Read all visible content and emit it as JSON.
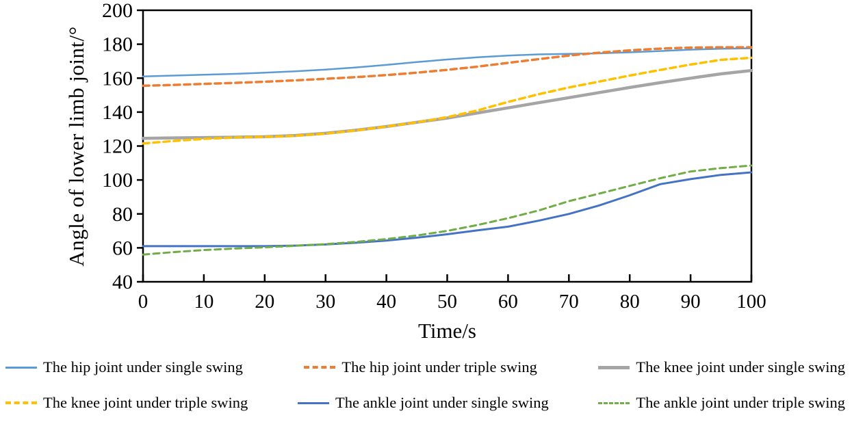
{
  "figure": {
    "background": "#ffffff",
    "text_color": "#000000",
    "axis_color": "#000000"
  },
  "chart_data": {
    "type": "line",
    "title": "",
    "xlabel": "Time/s",
    "ylabel": "Angle of lower limb joint/°",
    "xlim": [
      0,
      100
    ],
    "ylim": [
      40,
      200
    ],
    "xticks": [
      0,
      10,
      20,
      30,
      40,
      50,
      60,
      70,
      80,
      90,
      100
    ],
    "yticks": [
      40,
      60,
      80,
      100,
      120,
      140,
      160,
      180,
      200
    ],
    "grid": false,
    "legend_position": "bottom",
    "x": [
      0,
      5,
      10,
      15,
      20,
      25,
      30,
      35,
      40,
      45,
      50,
      55,
      60,
      65,
      70,
      75,
      80,
      85,
      90,
      95,
      100
    ],
    "series": [
      {
        "name": "The hip joint under single swing",
        "color": "#5b9bd5",
        "style": "solid",
        "width": 2.5,
        "values": [
          161,
          161.5,
          162,
          162.5,
          163.2,
          164,
          165,
          166.3,
          167.8,
          169.5,
          171,
          172.3,
          173.3,
          174,
          174.3,
          174.6,
          175.2,
          176,
          176.8,
          177.3,
          177.6
        ]
      },
      {
        "name": "The hip joint under triple swing",
        "color": "#ed7d31",
        "style": "dashed",
        "width": 3.5,
        "values": [
          155.5,
          156,
          156.6,
          157.2,
          157.9,
          158.7,
          159.6,
          160.6,
          161.8,
          163.2,
          164.9,
          166.8,
          169,
          171.2,
          173.3,
          175,
          176.4,
          177.4,
          178,
          178.2,
          178.2
        ]
      },
      {
        "name": "The knee joint under single swing",
        "color": "#a5a5a5",
        "style": "solid",
        "width": 4.5,
        "values": [
          124.5,
          124.8,
          125,
          125.2,
          125.5,
          126.2,
          127.5,
          129.3,
          131.5,
          134,
          136.5,
          139.5,
          142.5,
          145.5,
          148.5,
          151.5,
          154.5,
          157.3,
          160,
          162.5,
          164.5
        ]
      },
      {
        "name": "The knee joint under triple swing",
        "color": "#ffc000",
        "style": "dashed",
        "width": 3.5,
        "values": [
          121.5,
          123,
          124.2,
          125,
          125.4,
          126,
          127.3,
          129.2,
          131.5,
          134,
          137,
          141,
          146,
          150.5,
          154.5,
          158,
          161.5,
          164.8,
          168,
          170.8,
          172
        ]
      },
      {
        "name": "The ankle joint under single swing",
        "color": "#4472c4",
        "style": "solid",
        "width": 3,
        "values": [
          61,
          61,
          61,
          61,
          61,
          61.3,
          62,
          63,
          64.3,
          66,
          68,
          70.3,
          72.5,
          76,
          80,
          85,
          91,
          97.5,
          100.5,
          103,
          104.5
        ]
      },
      {
        "name": "The ankle joint under triple swing",
        "color": "#70ad47",
        "style": "dashed",
        "width": 3,
        "values": [
          56,
          57.5,
          58.7,
          59.6,
          60.3,
          61.2,
          62.2,
          63.5,
          65.2,
          67.3,
          70,
          73.5,
          77.5,
          82,
          87.5,
          92,
          96.5,
          101,
          105,
          107,
          108.5
        ]
      }
    ]
  },
  "legend": {
    "rows": [
      [
        0,
        1,
        2
      ],
      [
        3,
        4,
        5
      ]
    ]
  }
}
